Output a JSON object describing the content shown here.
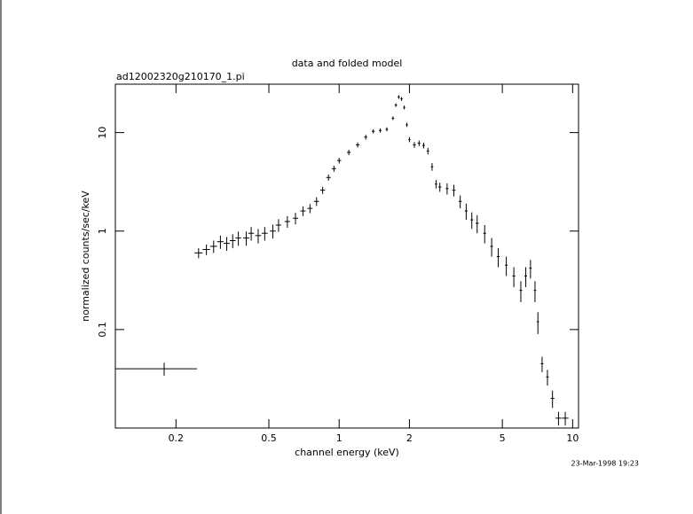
{
  "chart_data": {
    "type": "scatter",
    "title": "data and folded model",
    "subtitle": "ad12002320g210170_1.pi",
    "x_label": "channel energy (keV)",
    "y_label": "normalized counts/sec/keV",
    "annotation": "23-Mar-1998 19:23",
    "xlog": true,
    "ylog": true,
    "xlim": [
      0.11,
      10.6
    ],
    "ylim": [
      0.01,
      31
    ],
    "xticks": [
      0.2,
      0.5,
      1,
      2,
      5,
      10
    ],
    "yticks": [
      0.1,
      1,
      10
    ],
    "color": "#000000",
    "x": [
      0.178,
      0.25,
      0.27,
      0.29,
      0.31,
      0.33,
      0.35,
      0.37,
      0.4,
      0.42,
      0.45,
      0.48,
      0.52,
      0.55,
      0.6,
      0.65,
      0.7,
      0.75,
      0.8,
      0.85,
      0.9,
      0.95,
      1.0,
      1.1,
      1.2,
      1.3,
      1.4,
      1.5,
      1.6,
      1.7,
      1.75,
      1.8,
      1.85,
      1.9,
      1.95,
      2.0,
      2.1,
      2.2,
      2.3,
      2.4,
      2.5,
      2.6,
      2.7,
      2.9,
      3.1,
      3.3,
      3.5,
      3.7,
      3.9,
      4.2,
      4.5,
      4.8,
      5.2,
      5.6,
      6.0,
      6.3,
      6.6,
      6.9,
      7.1,
      7.4,
      7.8,
      8.2,
      8.7,
      9.3
    ],
    "xerr": [
      0.068,
      0.01,
      0.01,
      0.01,
      0.01,
      0.01,
      0.01,
      0.01,
      0.012,
      0.012,
      0.013,
      0.014,
      0.015,
      0.015,
      0.016,
      0.017,
      0.018,
      0.019,
      0.02,
      0.02,
      0.02,
      0.02,
      0.02,
      0.02,
      0.02,
      0.02,
      0.02,
      0.02,
      0.02,
      0.02,
      0.02,
      0.02,
      0.02,
      0.02,
      0.02,
      0.02,
      0.03,
      0.03,
      0.03,
      0.03,
      0.03,
      0.03,
      0.04,
      0.04,
      0.05,
      0.05,
      0.05,
      0.05,
      0.06,
      0.06,
      0.06,
      0.07,
      0.07,
      0.08,
      0.08,
      0.08,
      0.08,
      0.08,
      0.08,
      0.1,
      0.1,
      0.15,
      0.25,
      0.3
    ],
    "values": [
      0.04,
      0.6,
      0.65,
      0.7,
      0.78,
      0.75,
      0.8,
      0.85,
      0.85,
      0.95,
      0.9,
      0.95,
      1.0,
      1.15,
      1.25,
      1.35,
      1.6,
      1.7,
      2.0,
      2.6,
      3.5,
      4.3,
      5.2,
      6.3,
      7.5,
      9,
      10.3,
      10.5,
      10.8,
      14,
      19,
      23,
      22,
      18,
      12,
      8.5,
      7.5,
      7.8,
      7.4,
      6.5,
      4.5,
      3.0,
      2.8,
      2.7,
      2.6,
      2.0,
      1.6,
      1.3,
      1.2,
      0.95,
      0.7,
      0.55,
      0.45,
      0.35,
      0.25,
      0.35,
      0.42,
      0.25,
      0.12,
      0.045,
      0.033,
      0.02,
      0.0126,
      0.0126
    ],
    "yerr": [
      0.006,
      0.07,
      0.08,
      0.1,
      0.12,
      0.12,
      0.13,
      0.14,
      0.14,
      0.15,
      0.15,
      0.15,
      0.16,
      0.17,
      0.17,
      0.18,
      0.18,
      0.18,
      0.2,
      0.22,
      0.25,
      0.3,
      0.35,
      0.4,
      0.45,
      0.5,
      0.5,
      0.5,
      0.5,
      0.6,
      0.8,
      1.0,
      1.0,
      0.8,
      0.6,
      0.5,
      0.5,
      0.5,
      0.5,
      0.5,
      0.4,
      0.3,
      0.3,
      0.35,
      0.35,
      0.3,
      0.3,
      0.25,
      0.25,
      0.2,
      0.15,
      0.12,
      0.1,
      0.08,
      0.06,
      0.08,
      0.09,
      0.06,
      0.03,
      0.008,
      0.006,
      0.004,
      0.002,
      0.002
    ]
  }
}
